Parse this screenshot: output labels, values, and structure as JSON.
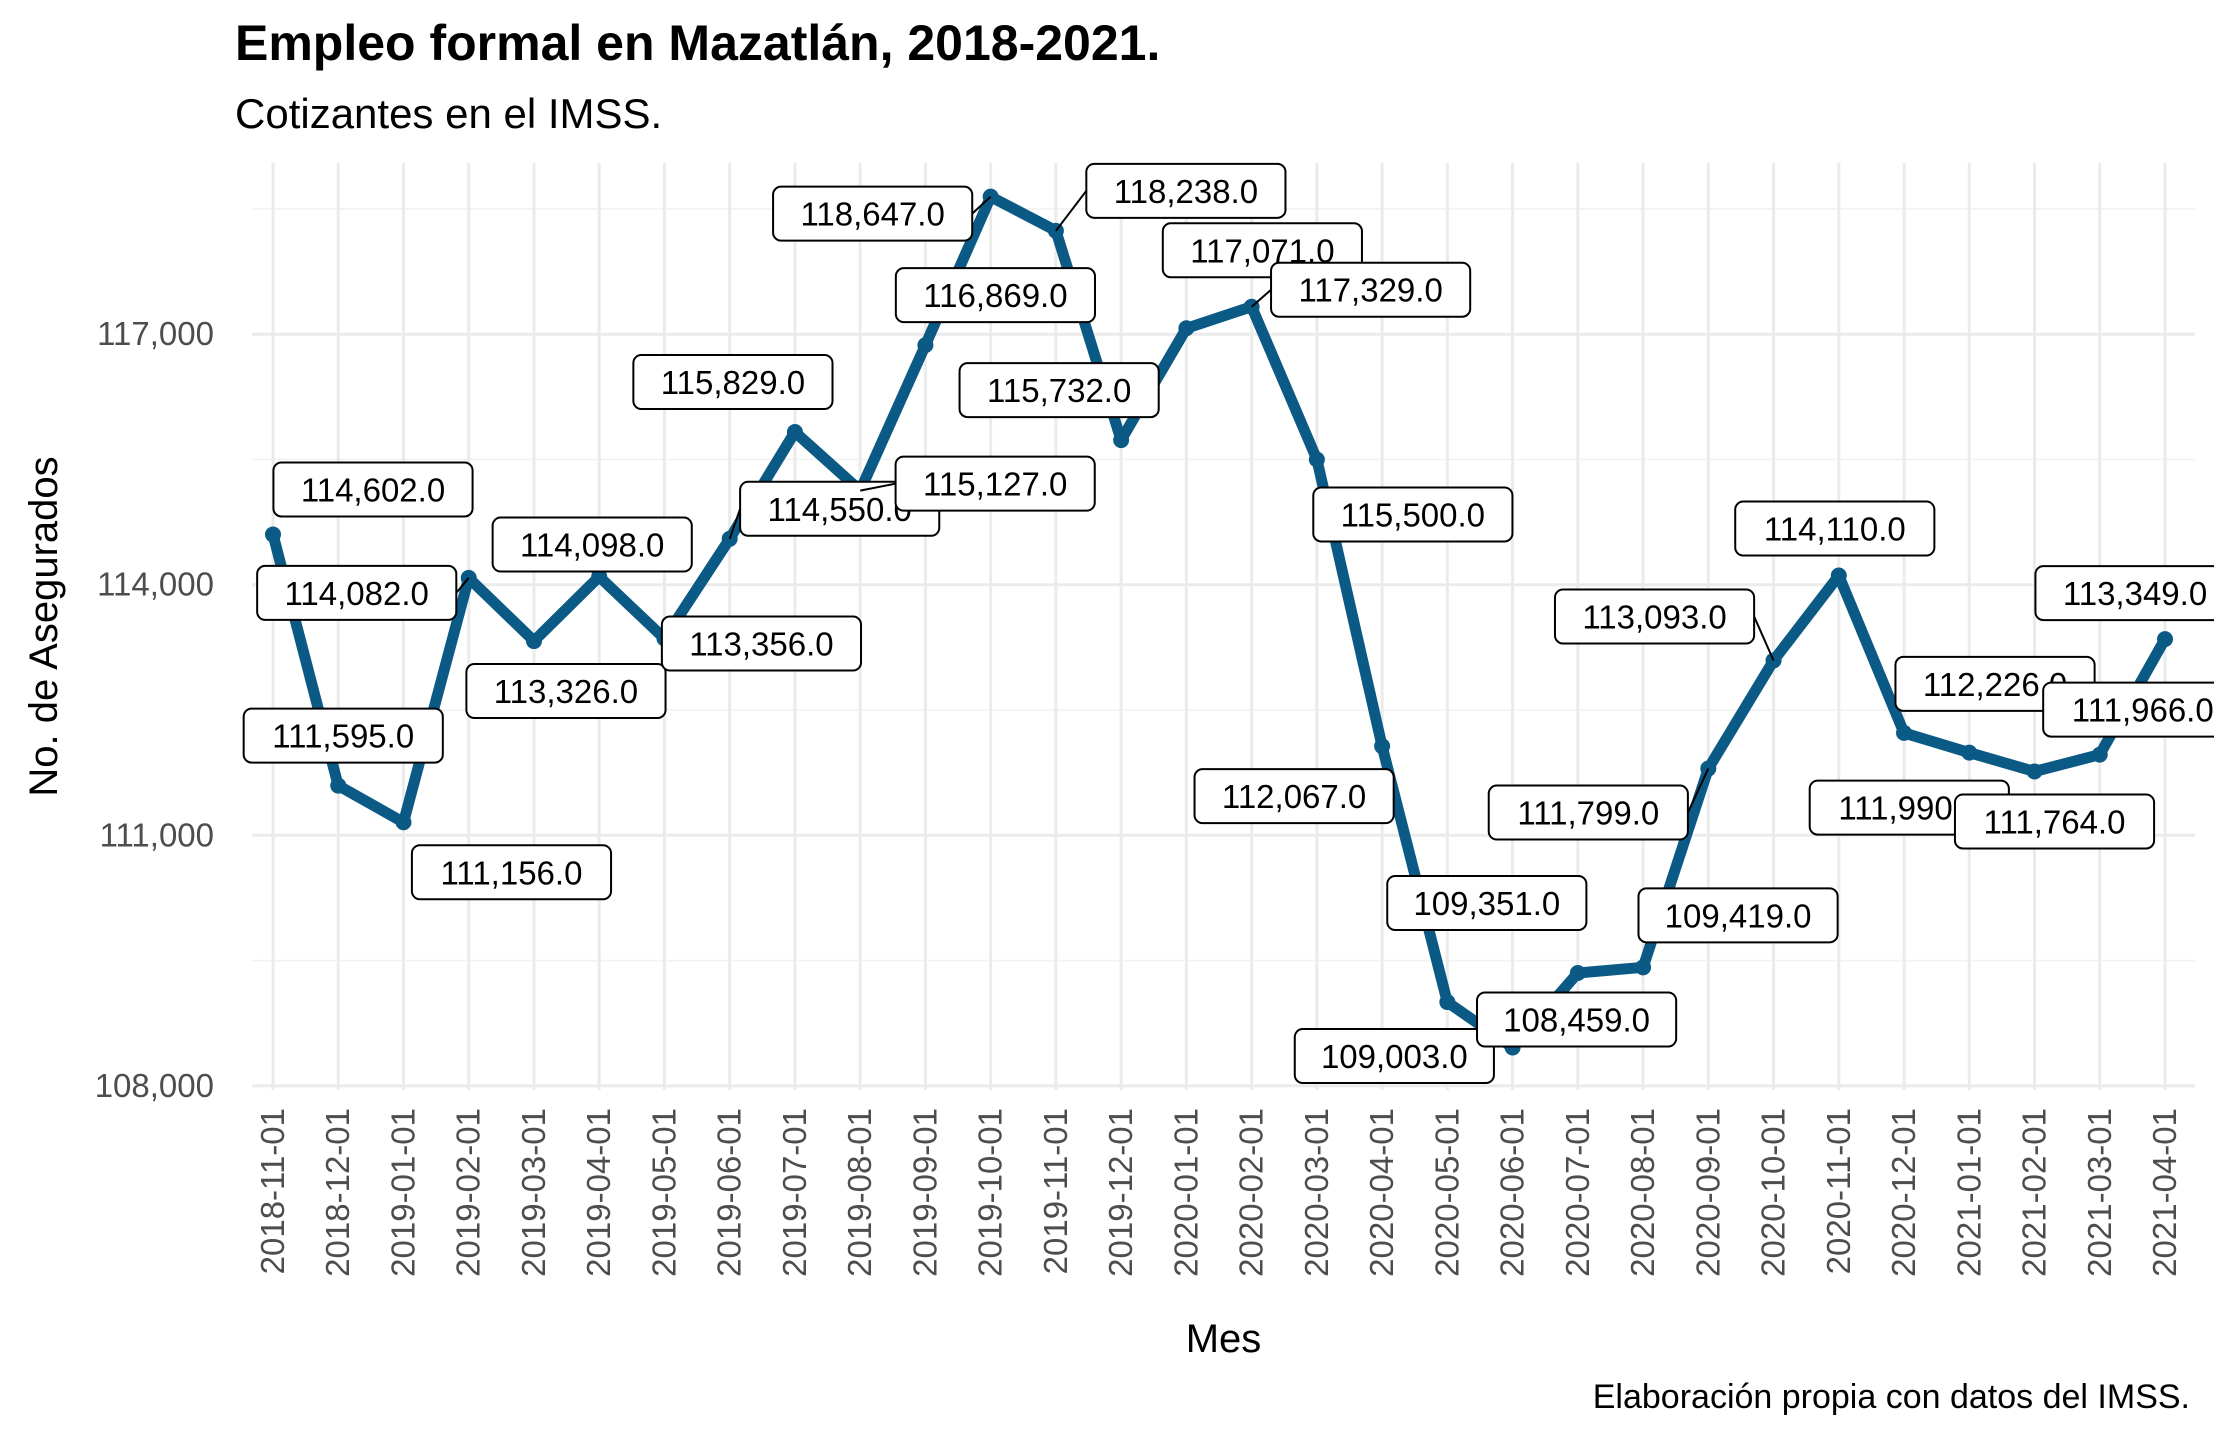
{
  "chart_data": {
    "type": "line",
    "title": "Empleo formal en Mazatlán, 2018-2021.",
    "subtitle": "Cotizantes en el IMSS.",
    "caption": "Elaboración propia con datos del IMSS.",
    "xlabel": "Mes",
    "ylabel": "No. de Asegurados",
    "x": [
      "2018-11-01",
      "2018-12-01",
      "2019-01-01",
      "2019-02-01",
      "2019-03-01",
      "2019-04-01",
      "2019-05-01",
      "2019-06-01",
      "2019-07-01",
      "2019-08-01",
      "2019-09-01",
      "2019-10-01",
      "2019-11-01",
      "2019-12-01",
      "2020-01-01",
      "2020-02-01",
      "2020-03-01",
      "2020-04-01",
      "2020-05-01",
      "2020-06-01",
      "2020-07-01",
      "2020-08-01",
      "2020-09-01",
      "2020-10-01",
      "2020-11-01",
      "2020-12-01",
      "2021-01-01",
      "2021-02-01",
      "2021-03-01",
      "2021-04-01"
    ],
    "values": [
      114602,
      111595,
      111156,
      114082,
      113326,
      114098,
      113356,
      114550,
      115829,
      115127,
      116869,
      118647,
      118238,
      115732,
      117071,
      117329,
      115500,
      112067,
      109003,
      108459,
      109351,
      109419,
      111799,
      113093,
      114110,
      112226,
      111990,
      111764,
      111966,
      113349
    ],
    "labels": [
      "114,602.0",
      "111,595.0",
      "111,156.0",
      "114,082.0",
      "113,326.0",
      "114,098.0",
      "113,356.0",
      "114,550.0",
      "115,829.0",
      "115,127.0",
      "116,869.0",
      "118,647.0",
      "118,238.0",
      "115,732.0",
      "117,071.0",
      "117,329.0",
      "115,500.0",
      "112,067.0",
      "109,003.0",
      "108,459.0",
      "109,351.0",
      "109,419.0",
      "111,799.0",
      "113,093.0",
      "114,110.0",
      "112,226.0",
      "111,990.0",
      "111,764.0",
      "111,966.0",
      "113,349.0"
    ],
    "y_ticks": [
      108000,
      111000,
      114000,
      117000
    ],
    "y_tick_labels": [
      "108,000",
      "111,000",
      "114,000",
      "117,000"
    ],
    "ylim": [
      107950,
      119050
    ],
    "line_color": "#0b5a86",
    "grid": true,
    "legend": "none"
  }
}
